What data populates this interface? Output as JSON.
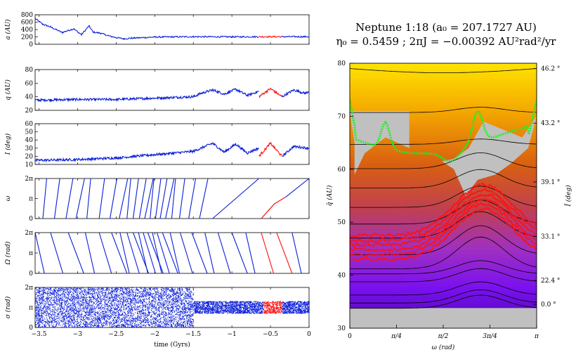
{
  "title": {
    "line1": "Neptune 1:18 (a₀ = 207.1727 AU)",
    "line2": "η₀ = 0.5459  ;  2πJ = −0.00392 AU²rad²/yr"
  },
  "colors": {
    "blue": "#0b1fd8",
    "red": "#ff1010",
    "green": "#22ee22",
    "grey": "#c0c0c0"
  },
  "chart_data": [
    {
      "type": "line",
      "panel": "a",
      "ylabel": "a (AU)",
      "xlim": [
        -3.55,
        0
      ],
      "ylim": [
        0,
        800
      ],
      "yticks": [
        "0",
        "200",
        "400",
        "600",
        "800"
      ],
      "series": [
        {
          "color": "#0b1fd8",
          "x": [
            -3.55,
            -3.45,
            -3.35,
            -3.2,
            -3.05,
            -2.95,
            -2.85,
            -2.8,
            -2.7,
            -2.6,
            -2.5,
            -2.4,
            -2.3,
            -2.0,
            -1.5,
            -1.0,
            -0.65
          ],
          "y": [
            700,
            540,
            470,
            320,
            420,
            260,
            500,
            330,
            300,
            230,
            180,
            150,
            165,
            195,
            205,
            200,
            205
          ]
        },
        {
          "color": "#ff1010",
          "x": [
            -0.65,
            -0.35
          ],
          "y": [
            205,
            205
          ]
        },
        {
          "color": "#0b1fd8",
          "x": [
            -0.35,
            0
          ],
          "y": [
            205,
            205
          ]
        }
      ]
    },
    {
      "type": "line",
      "panel": "q",
      "ylabel": "q (AU)",
      "xlim": [
        -3.55,
        0
      ],
      "ylim": [
        20,
        80
      ],
      "yticks": [
        "20",
        "40",
        "60",
        "80"
      ],
      "series": [
        {
          "color": "#0b1fd8",
          "x": [
            -3.55,
            -3.0,
            -2.5,
            -2.0,
            -1.5,
            -1.4,
            -1.25,
            -1.1,
            -0.95,
            -0.8,
            -0.65
          ],
          "y": [
            35,
            36,
            36,
            38,
            40,
            45,
            50,
            44,
            51,
            42,
            48
          ]
        },
        {
          "color": "#ff1010",
          "x": [
            -0.65,
            -0.5,
            -0.35
          ],
          "y": [
            40,
            52,
            40
          ]
        },
        {
          "color": "#0b1fd8",
          "x": [
            -0.35,
            -0.2,
            -0.05,
            0
          ],
          "y": [
            40,
            50,
            45,
            48
          ]
        }
      ]
    },
    {
      "type": "line",
      "panel": "I",
      "ylabel": "I (deg)",
      "xlim": [
        -3.55,
        0
      ],
      "ylim": [
        10,
        60
      ],
      "yticks": [
        "10",
        "20",
        "30",
        "40",
        "50",
        "60"
      ],
      "series": [
        {
          "color": "#0b1fd8",
          "x": [
            -3.55,
            -3.0,
            -2.5,
            -2.0,
            -1.5,
            -1.4,
            -1.25,
            -1.1,
            -0.95,
            -0.8,
            -0.65
          ],
          "y": [
            15,
            16,
            18,
            22,
            26,
            30,
            36,
            25,
            35,
            24,
            30
          ]
        },
        {
          "color": "#ff1010",
          "x": [
            -0.65,
            -0.5,
            -0.35
          ],
          "y": [
            20,
            36,
            20
          ]
        },
        {
          "color": "#0b1fd8",
          "x": [
            -0.35,
            -0.2,
            0
          ],
          "y": [
            20,
            32,
            30
          ]
        }
      ]
    },
    {
      "type": "line",
      "panel": "omega",
      "ylabel": "ω",
      "xlim": [
        -3.55,
        0
      ],
      "ylim": [
        0,
        6.2832
      ],
      "yticks": [
        "0",
        "π",
        "2π"
      ],
      "description": "circulating; segments drawn by script",
      "red_segment": [
        -0.62,
        -0.3
      ]
    },
    {
      "type": "line",
      "panel": "Omega",
      "ylabel": "Ω (rad)",
      "xlim": [
        -3.55,
        0
      ],
      "ylim": [
        0,
        6.2832
      ],
      "yticks": [
        "0",
        "π",
        "2π"
      ],
      "red_segment": [
        -0.6,
        -0.3
      ]
    },
    {
      "type": "scatter",
      "panel": "sigma",
      "ylabel": "σ (rad)",
      "xlabel": "time (Gyrs)",
      "xlim": [
        -3.55,
        0
      ],
      "ylim": [
        0,
        6.2832
      ],
      "yticks": [
        "0",
        "π",
        "2π"
      ],
      "xticks": [
        "−3.5",
        "−3",
        "−2.5",
        "−2",
        "−1.5",
        "−1",
        "−0.5",
        "0"
      ],
      "red_segment": [
        -0.6,
        -0.35
      ]
    },
    {
      "type": "heatmap",
      "panel": "phase",
      "xlabel": "ω (rad)",
      "ylabel": "q̄ (AU)",
      "ylabel_right": "Ī (deg)",
      "xlim": [
        0,
        3.1416
      ],
      "ylim": [
        30,
        80
      ],
      "xticks": [
        "0",
        "π/4",
        "π/2",
        "3π/4",
        "π"
      ],
      "yticks": [
        "30",
        "40",
        "50",
        "60",
        "70",
        "80"
      ],
      "yticks_right": [
        "0.0 °",
        "22.4 °",
        "33.1 °",
        "39.1 °",
        "43.2 °",
        "46.2 °"
      ],
      "yticks_right_q": [
        34.5,
        39,
        47.3,
        57.6,
        68.7,
        79
      ]
    }
  ]
}
